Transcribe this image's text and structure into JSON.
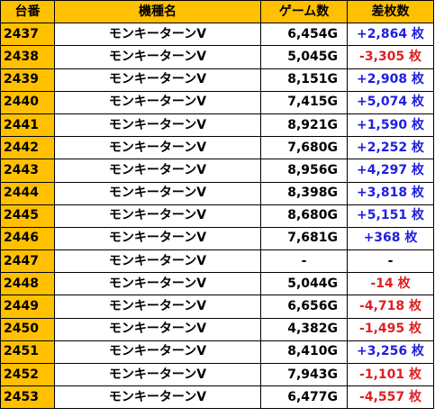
{
  "headers": {
    "unit": "台番",
    "model": "機種名",
    "games": "ゲーム数",
    "diff": "差枚数"
  },
  "colors": {
    "header_bg": "#ffc000",
    "positive": "#1f1fe0",
    "negative": "#e01f1f"
  },
  "rows": [
    {
      "unit": "2437",
      "model": "モンキーターンV",
      "games": "6,454G",
      "diff": "+2,864 枚",
      "sign": "pos"
    },
    {
      "unit": "2438",
      "model": "モンキーターンV",
      "games": "5,045G",
      "diff": "-3,305 枚",
      "sign": "neg"
    },
    {
      "unit": "2439",
      "model": "モンキーターンV",
      "games": "8,151G",
      "diff": "+2,908 枚",
      "sign": "pos"
    },
    {
      "unit": "2440",
      "model": "モンキーターンV",
      "games": "7,415G",
      "diff": "+5,074 枚",
      "sign": "pos"
    },
    {
      "unit": "2441",
      "model": "モンキーターンV",
      "games": "8,921G",
      "diff": "+1,590 枚",
      "sign": "pos"
    },
    {
      "unit": "2442",
      "model": "モンキーターンV",
      "games": "7,680G",
      "diff": "+2,252 枚",
      "sign": "pos"
    },
    {
      "unit": "2443",
      "model": "モンキーターンV",
      "games": "8,956G",
      "diff": "+4,297 枚",
      "sign": "pos"
    },
    {
      "unit": "2444",
      "model": "モンキーターンV",
      "games": "8,398G",
      "diff": "+3,818 枚",
      "sign": "pos"
    },
    {
      "unit": "2445",
      "model": "モンキーターンV",
      "games": "8,680G",
      "diff": "+5,151 枚",
      "sign": "pos"
    },
    {
      "unit": "2446",
      "model": "モンキーターンV",
      "games": "7,681G",
      "diff": "+368 枚",
      "sign": "pos"
    },
    {
      "unit": "2447",
      "model": "モンキーターンV",
      "games": "-",
      "diff": "-",
      "sign": "none"
    },
    {
      "unit": "2448",
      "model": "モンキーターンV",
      "games": "5,044G",
      "diff": "-14 枚",
      "sign": "neg"
    },
    {
      "unit": "2449",
      "model": "モンキーターンV",
      "games": "6,656G",
      "diff": "-4,718 枚",
      "sign": "neg"
    },
    {
      "unit": "2450",
      "model": "モンキーターンV",
      "games": "4,382G",
      "diff": "-1,495 枚",
      "sign": "neg"
    },
    {
      "unit": "2451",
      "model": "モンキーターンV",
      "games": "8,410G",
      "diff": "+3,256 枚",
      "sign": "pos"
    },
    {
      "unit": "2452",
      "model": "モンキーターンV",
      "games": "7,943G",
      "diff": "-1,101 枚",
      "sign": "neg"
    },
    {
      "unit": "2453",
      "model": "モンキーターンV",
      "games": "6,477G",
      "diff": "-4,557 枚",
      "sign": "neg"
    }
  ]
}
